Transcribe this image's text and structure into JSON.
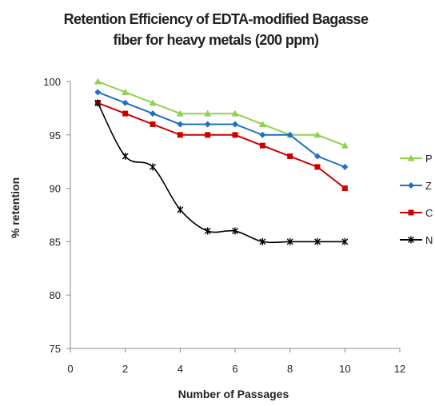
{
  "chart_data": {
    "type": "line",
    "title_lines": [
      "Retention Efficiency of EDTA-modified Bagasse",
      "fiber for heavy metals (200 ppm)"
    ],
    "xlabel": "Number of Passages",
    "ylabel": "% retention",
    "xlim": [
      0,
      12
    ],
    "ylim": [
      75,
      100
    ],
    "xticks": [
      0,
      2,
      4,
      6,
      8,
      10,
      12
    ],
    "yticks": [
      75,
      80,
      85,
      90,
      95,
      100
    ],
    "grid": false,
    "legend_position": "right",
    "x": [
      1,
      2,
      3,
      4,
      5,
      6,
      7,
      8,
      9,
      10
    ],
    "series": [
      {
        "name": "P",
        "color": "#92D050",
        "marker": "triangle",
        "values": [
          100,
          99,
          98,
          97,
          97,
          97,
          96,
          95,
          95,
          94
        ]
      },
      {
        "name": "Z",
        "color": "#1F6FC5",
        "marker": "diamond",
        "values": [
          99,
          98,
          97,
          96,
          96,
          96,
          95,
          95,
          93,
          92
        ]
      },
      {
        "name": "C",
        "color": "#CC0000",
        "marker": "square",
        "values": [
          98,
          97,
          96,
          95,
          95,
          95,
          94,
          93,
          92,
          90
        ]
      },
      {
        "name": "N",
        "color": "#000000",
        "marker": "star",
        "values": [
          98,
          93,
          92,
          88,
          86,
          86,
          85,
          85,
          85,
          85
        ]
      }
    ]
  }
}
